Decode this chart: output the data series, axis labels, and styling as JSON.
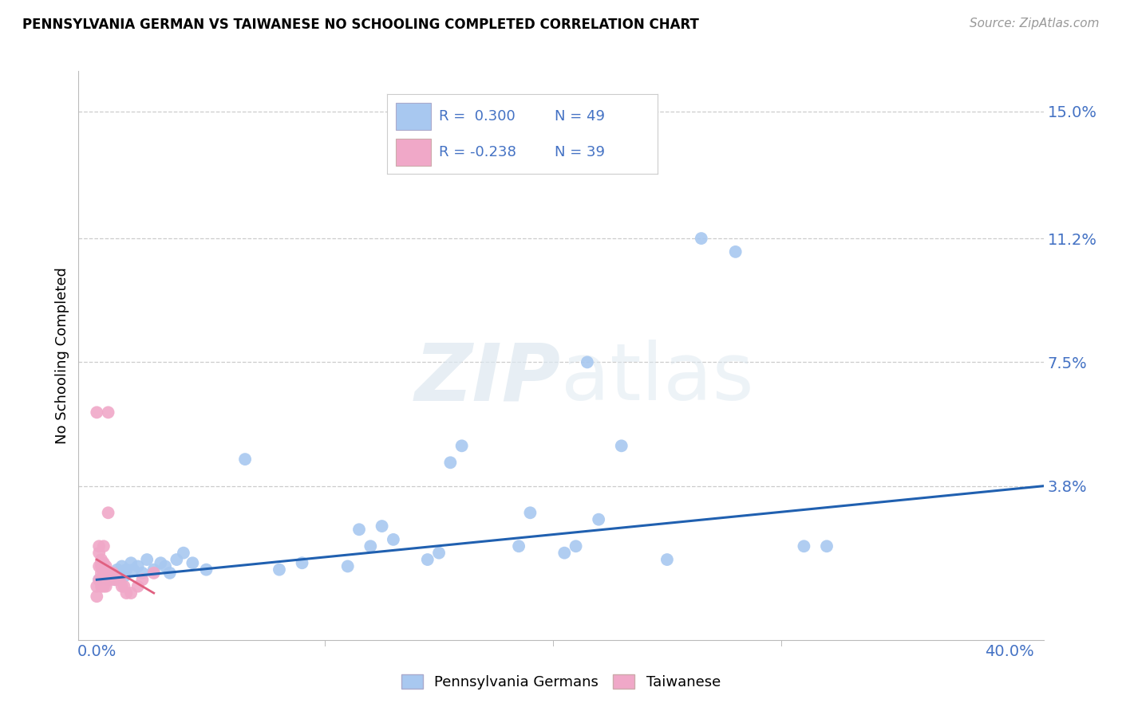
{
  "title": "PENNSYLVANIA GERMAN VS TAIWANESE NO SCHOOLING COMPLETED CORRELATION CHART",
  "source": "Source: ZipAtlas.com",
  "ylabel": "No Schooling Completed",
  "xlabel_ticks_left": "0.0%",
  "xlabel_ticks_right": "40.0%",
  "ylabel_ticks": [
    "15.0%",
    "11.2%",
    "7.5%",
    "3.8%"
  ],
  "ylabel_vals": [
    0.15,
    0.112,
    0.075,
    0.038
  ],
  "xlim": [
    -0.008,
    0.415
  ],
  "ylim": [
    -0.008,
    0.162
  ],
  "blue_R": 0.3,
  "blue_N": 49,
  "pink_R": -0.238,
  "pink_N": 39,
  "blue_color": "#a8c8f0",
  "pink_color": "#f0a8c8",
  "blue_line_color": "#2060b0",
  "pink_line_color": "#e06080",
  "legend_blue_label": "Pennsylvania Germans",
  "legend_pink_label": "Taiwanese",
  "watermark_zip": "ZIP",
  "watermark_atlas": "atlas",
  "grid_color": "#cccccc",
  "spine_color": "#bbbbbb",
  "tick_color": "#4472c4",
  "blue_x": [
    0.001,
    0.003,
    0.004,
    0.005,
    0.006,
    0.007,
    0.008,
    0.009,
    0.01,
    0.011,
    0.012,
    0.013,
    0.015,
    0.016,
    0.018,
    0.02,
    0.022,
    0.025,
    0.028,
    0.03,
    0.032,
    0.035,
    0.038,
    0.042,
    0.048,
    0.065,
    0.08,
    0.09,
    0.11,
    0.115,
    0.12,
    0.125,
    0.13,
    0.145,
    0.15,
    0.155,
    0.16,
    0.185,
    0.19,
    0.205,
    0.21,
    0.215,
    0.22,
    0.23,
    0.25,
    0.265,
    0.28,
    0.31,
    0.32
  ],
  "blue_y": [
    0.01,
    0.012,
    0.011,
    0.01,
    0.012,
    0.012,
    0.01,
    0.013,
    0.012,
    0.014,
    0.011,
    0.013,
    0.015,
    0.013,
    0.014,
    0.012,
    0.016,
    0.013,
    0.015,
    0.014,
    0.012,
    0.016,
    0.018,
    0.015,
    0.013,
    0.046,
    0.013,
    0.015,
    0.014,
    0.025,
    0.02,
    0.026,
    0.022,
    0.016,
    0.018,
    0.045,
    0.05,
    0.02,
    0.03,
    0.018,
    0.02,
    0.075,
    0.028,
    0.05,
    0.016,
    0.112,
    0.108,
    0.02,
    0.02
  ],
  "pink_x": [
    0.0,
    0.0,
    0.001,
    0.001,
    0.001,
    0.001,
    0.002,
    0.002,
    0.002,
    0.002,
    0.002,
    0.002,
    0.003,
    0.003,
    0.003,
    0.003,
    0.003,
    0.003,
    0.004,
    0.004,
    0.004,
    0.004,
    0.005,
    0.005,
    0.005,
    0.006,
    0.006,
    0.007,
    0.008,
    0.009,
    0.01,
    0.011,
    0.012,
    0.013,
    0.015,
    0.018,
    0.02,
    0.025,
    0.0
  ],
  "pink_y": [
    0.005,
    0.008,
    0.01,
    0.014,
    0.018,
    0.02,
    0.008,
    0.01,
    0.012,
    0.014,
    0.015,
    0.016,
    0.008,
    0.01,
    0.012,
    0.013,
    0.015,
    0.02,
    0.008,
    0.01,
    0.012,
    0.014,
    0.06,
    0.03,
    0.01,
    0.01,
    0.012,
    0.012,
    0.01,
    0.01,
    0.01,
    0.008,
    0.008,
    0.006,
    0.006,
    0.008,
    0.01,
    0.012,
    0.06
  ],
  "blue_line_x0": 0.0,
  "blue_line_x1": 0.415,
  "blue_line_y0": 0.01,
  "blue_line_y1": 0.038,
  "pink_line_x0": 0.0,
  "pink_line_x1": 0.025,
  "pink_line_y0": 0.016,
  "pink_line_y1": 0.006
}
